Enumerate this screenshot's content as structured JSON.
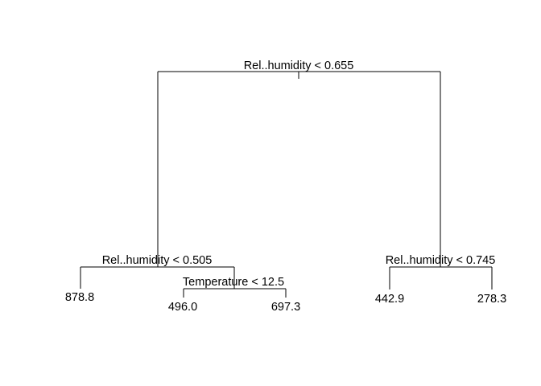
{
  "tree": {
    "root_split": "Rel..humidity < 0.655",
    "left_split": "Rel..humidity < 0.505",
    "left_inner_split": "Temperature < 12.5",
    "right_split": "Rel..humidity < 0.745",
    "leaves": {
      "leaf_1": "878.8",
      "leaf_2": "496.0",
      "leaf_3": "697.3",
      "leaf_4": "442.9",
      "leaf_5": "278.3"
    }
  },
  "colors": {
    "line": "#000000",
    "text": "#000000",
    "background": "#ffffff"
  }
}
